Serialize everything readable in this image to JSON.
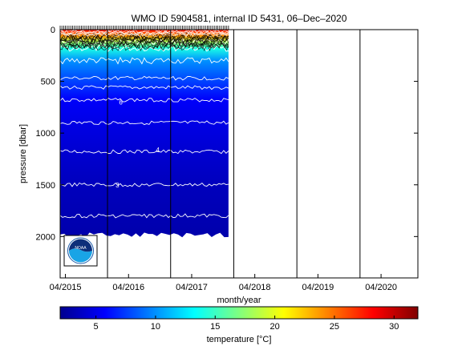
{
  "chart_data": {
    "type": "heatmap",
    "title": "WMO ID 5904581, internal ID 5431, 06–Dec–2020",
    "xlabel": "month/year",
    "ylabel": "pressure [dbar]",
    "x_tick_labels": [
      "04/2015",
      "04/2016",
      "04/2017",
      "04/2018",
      "04/2019",
      "04/2020"
    ],
    "y_tick_labels": [
      "0",
      "500",
      "1000",
      "1500",
      "2000"
    ],
    "x_range": [
      "2015-03",
      "2020-11"
    ],
    "y_range_dbar": [
      0,
      2400
    ],
    "y_reversed": true,
    "data_extent": {
      "start": "2015-03",
      "end": "2017-11",
      "max_pressure_dbar": 2000
    },
    "year_boundaries": [
      "2015-12",
      "2016-12",
      "2017-12",
      "2018-12",
      "2019-12"
    ],
    "isotherm_depths_dbar": [
      {
        "temperature_c": 18,
        "pressure_dbar": 120
      },
      {
        "temperature_c": 14,
        "pressure_dbar": 180
      },
      {
        "temperature_c": 10,
        "pressure_dbar": 300
      },
      {
        "temperature_c": 8,
        "pressure_dbar": 470
      },
      {
        "temperature_c": 7,
        "pressure_dbar": 560
      },
      {
        "temperature_c": 6,
        "pressure_dbar": 680
      },
      {
        "temperature_c": 5,
        "pressure_dbar": 900
      },
      {
        "temperature_c": 4,
        "pressure_dbar": 1180
      },
      {
        "temperature_c": 3,
        "pressure_dbar": 1500
      },
      {
        "temperature_c": 2.5,
        "pressure_dbar": 1800
      }
    ],
    "contour_labels": [
      "6",
      "4",
      "3"
    ],
    "colorbar": {
      "label": "temperature [°C]",
      "range": [
        2,
        32
      ],
      "ticks": [
        "5",
        "10",
        "15",
        "20",
        "25",
        "30"
      ],
      "colormap": "jet"
    },
    "colors": {
      "warm_surface": "#e8281c",
      "cold_deep": "#0a1aa8",
      "contour": "#ffffff",
      "frame": "#000000"
    },
    "logo": "noaa-logo"
  }
}
